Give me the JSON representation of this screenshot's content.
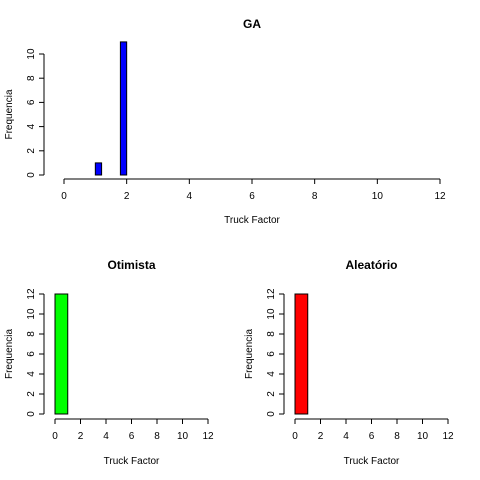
{
  "chart_data": [
    {
      "type": "bar",
      "title": "GA",
      "xlabel": "Truck Factor",
      "ylabel": "Frequencia",
      "xlim": [
        0,
        12
      ],
      "xticks": [
        0,
        2,
        4,
        6,
        8,
        10,
        12
      ],
      "yticks": [
        0,
        2,
        4,
        6,
        8,
        10
      ],
      "ylim": [
        0,
        11
      ],
      "bars": [
        {
          "x0": 1.0,
          "x1": 1.2,
          "value": 1
        },
        {
          "x0": 1.2,
          "x1": 1.8,
          "value": 0
        },
        {
          "x0": 1.8,
          "x1": 2.0,
          "value": 11
        }
      ],
      "color": "#0000ff"
    },
    {
      "type": "bar",
      "title": "Otimista",
      "xlabel": "Truck Factor",
      "ylabel": "Frequencia",
      "xlim": [
        0,
        12
      ],
      "xticks": [
        0,
        2,
        4,
        6,
        8,
        10,
        12
      ],
      "yticks": [
        0,
        2,
        4,
        6,
        8,
        10,
        12
      ],
      "ylim": [
        0,
        12
      ],
      "bars": [
        {
          "x0": 0,
          "x1": 1,
          "value": 12
        }
      ],
      "color": "#00ff00"
    },
    {
      "type": "bar",
      "title": "Aleatório",
      "xlabel": "Truck Factor",
      "ylabel": "Frequencia",
      "xlim": [
        0,
        12
      ],
      "xticks": [
        0,
        2,
        4,
        6,
        8,
        10,
        12
      ],
      "yticks": [
        0,
        2,
        4,
        6,
        8,
        10,
        12
      ],
      "ylim": [
        0,
        12
      ],
      "bars": [
        {
          "x0": 0,
          "x1": 1,
          "value": 12
        }
      ],
      "color": "#ff0000"
    }
  ]
}
